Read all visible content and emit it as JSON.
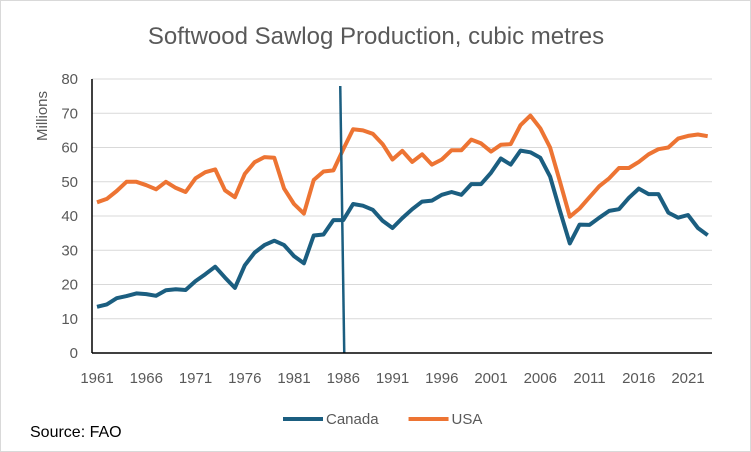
{
  "chart_data": {
    "type": "line",
    "title": "Softwood Sawlog Production, cubic metres",
    "ylabel": "Millions",
    "xlabel": "",
    "ylim": [
      0,
      80
    ],
    "yticks": [
      0,
      10,
      20,
      30,
      40,
      50,
      60,
      70,
      80
    ],
    "xticks": [
      1961,
      1966,
      1971,
      1976,
      1981,
      1986,
      1991,
      1996,
      2001,
      2006,
      2011,
      2016,
      2021
    ],
    "x_start": 1961,
    "grid": true,
    "legend": "bottom",
    "annotation_vline_year": 1986,
    "series": [
      {
        "name": "Canada",
        "color": "#1b5e80",
        "values": [
          13.5,
          14.2,
          16,
          16.6,
          17.4,
          17.2,
          16.7,
          18.3,
          18.6,
          18.4,
          21,
          23,
          25.2,
          22,
          19,
          25.6,
          29.3,
          31.5,
          32.8,
          31.5,
          28.3,
          26.2,
          34.3,
          34.6,
          38.8,
          38.8,
          43.5,
          43,
          41.8,
          38.6,
          36.5,
          39.4,
          42,
          44.2,
          44.5,
          46.2,
          47,
          46.2,
          49.3,
          49.3,
          52.6,
          56.8,
          55,
          59.1,
          58.6,
          57,
          51.5,
          41.5,
          32,
          37.5,
          37.4,
          39.5,
          41.5,
          42,
          45.3,
          48,
          46.4,
          46.4,
          41,
          39.5,
          40.3,
          36.5,
          34.4
        ]
      },
      {
        "name": "USA",
        "color": "#ed7433",
        "values": [
          44,
          45,
          47.3,
          50,
          50,
          49,
          47.8,
          50,
          48.2,
          47,
          51,
          52.8,
          53.6,
          47.5,
          45.5,
          52.3,
          55.7,
          57.2,
          57,
          48,
          43.5,
          40.7,
          50.5,
          53,
          53.3,
          59.5,
          65.3,
          65,
          64,
          61,
          56.5,
          59,
          55.8,
          58,
          55,
          56.5,
          59.2,
          59.2,
          62.3,
          61.2,
          58.8,
          60.8,
          61,
          66.5,
          69.3,
          65.6,
          60,
          50,
          39.8,
          42.2,
          45.5,
          48.7,
          51,
          54,
          54,
          55.8,
          58,
          59.5,
          60,
          62.6,
          63.4,
          63.8,
          63.3
        ]
      }
    ]
  },
  "source": "Source: FAO"
}
